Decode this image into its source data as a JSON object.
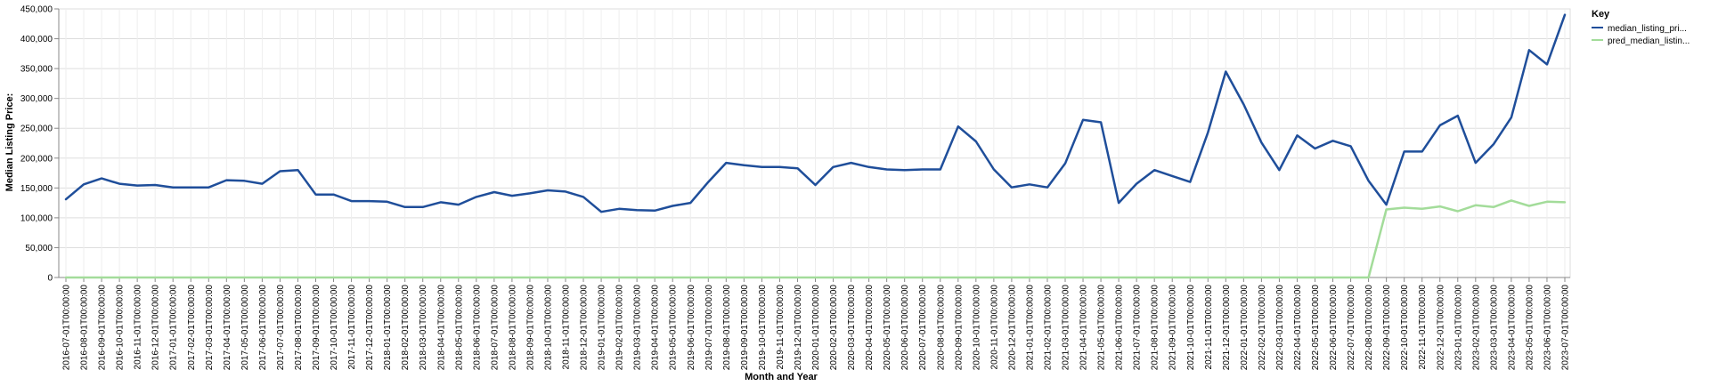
{
  "chart_data": {
    "type": "line",
    "title": "",
    "xlabel": "Month and Year",
    "ylabel": "Median Listing Price:",
    "ylim": [
      0,
      450000
    ],
    "yticks": [
      0,
      50000,
      100000,
      150000,
      200000,
      250000,
      300000,
      350000,
      400000,
      450000
    ],
    "ytick_labels": [
      "0",
      "50,000",
      "100,000",
      "150,000",
      "200,000",
      "250,000",
      "300,000",
      "350,000",
      "400,000",
      "450,000"
    ],
    "grid": true,
    "legend": {
      "title": "Key",
      "placement": "right"
    },
    "x": [
      "2016-07-01T00:00:00",
      "2016-08-01T00:00:00",
      "2016-09-01T00:00:00",
      "2016-10-01T00:00:00",
      "2016-11-01T00:00:00",
      "2016-12-01T00:00:00",
      "2017-01-01T00:00:00",
      "2017-02-01T00:00:00",
      "2017-03-01T00:00:00",
      "2017-04-01T00:00:00",
      "2017-05-01T00:00:00",
      "2017-06-01T00:00:00",
      "2017-07-01T00:00:00",
      "2017-08-01T00:00:00",
      "2017-09-01T00:00:00",
      "2017-10-01T00:00:00",
      "2017-11-01T00:00:00",
      "2017-12-01T00:00:00",
      "2018-01-01T00:00:00",
      "2018-02-01T00:00:00",
      "2018-03-01T00:00:00",
      "2018-04-01T00:00:00",
      "2018-05-01T00:00:00",
      "2018-06-01T00:00:00",
      "2018-07-01T00:00:00",
      "2018-08-01T00:00:00",
      "2018-09-01T00:00:00",
      "2018-10-01T00:00:00",
      "2018-11-01T00:00:00",
      "2018-12-01T00:00:00",
      "2019-01-01T00:00:00",
      "2019-02-01T00:00:00",
      "2019-03-01T00:00:00",
      "2019-04-01T00:00:00",
      "2019-05-01T00:00:00",
      "2019-06-01T00:00:00",
      "2019-07-01T00:00:00",
      "2019-08-01T00:00:00",
      "2019-09-01T00:00:00",
      "2019-10-01T00:00:00",
      "2019-11-01T00:00:00",
      "2019-12-01T00:00:00",
      "2020-01-01T00:00:00",
      "2020-02-01T00:00:00",
      "2020-03-01T00:00:00",
      "2020-04-01T00:00:00",
      "2020-05-01T00:00:00",
      "2020-06-01T00:00:00",
      "2020-07-01T00:00:00",
      "2020-08-01T00:00:00",
      "2020-09-01T00:00:00",
      "2020-10-01T00:00:00",
      "2020-11-01T00:00:00",
      "2020-12-01T00:00:00",
      "2021-01-01T00:00:00",
      "2021-02-01T00:00:00",
      "2021-03-01T00:00:00",
      "2021-04-01T00:00:00",
      "2021-05-01T00:00:00",
      "2021-06-01T00:00:00",
      "2021-07-01T00:00:00",
      "2021-08-01T00:00:00",
      "2021-09-01T00:00:00",
      "2021-10-01T00:00:00",
      "2021-11-01T00:00:00",
      "2021-12-01T00:00:00",
      "2022-01-01T00:00:00",
      "2022-02-01T00:00:00",
      "2022-03-01T00:00:00",
      "2022-04-01T00:00:00",
      "2022-05-01T00:00:00",
      "2022-06-01T00:00:00",
      "2022-07-01T00:00:00",
      "2022-08-01T00:00:00",
      "2022-09-01T00:00:00",
      "2022-10-01T00:00:00",
      "2022-11-01T00:00:00",
      "2022-12-01T00:00:00",
      "2023-01-01T00:00:00",
      "2023-02-01T00:00:00",
      "2023-03-01T00:00:00",
      "2023-04-01T00:00:00",
      "2023-05-01T00:00:00",
      "2023-06-01T00:00:00",
      "2023-07-01T00:00:00"
    ],
    "series": [
      {
        "name": "median_listing_pri...",
        "color": "#1f4e9a",
        "values": [
          131000,
          156000,
          166000,
          157000,
          154000,
          155000,
          151000,
          151000,
          151000,
          163000,
          162000,
          157000,
          178000,
          180000,
          139000,
          139000,
          128000,
          128000,
          127000,
          118000,
          118000,
          126000,
          122000,
          135000,
          143000,
          137000,
          141000,
          146000,
          144000,
          135000,
          110000,
          115000,
          113000,
          112000,
          120000,
          125000,
          160000,
          192000,
          188000,
          185000,
          185000,
          183000,
          155000,
          185000,
          192000,
          185000,
          181000,
          180000,
          181000,
          181000,
          253000,
          228000,
          181000,
          151000,
          156000,
          151000,
          191000,
          264000,
          260000,
          125000,
          157000,
          180000,
          170000,
          160000,
          243000,
          345000,
          290000,
          226000,
          180000,
          238000,
          216000,
          229000,
          220000,
          162000,
          122000,
          211000,
          211000,
          255000,
          271000,
          192000,
          223000,
          268000,
          381000,
          357000,
          440000
        ]
      },
      {
        "name": "pred_median_listin...",
        "color": "#a3dc9a",
        "values": [
          0,
          0,
          0,
          0,
          0,
          0,
          0,
          0,
          0,
          0,
          0,
          0,
          0,
          0,
          0,
          0,
          0,
          0,
          0,
          0,
          0,
          0,
          0,
          0,
          0,
          0,
          0,
          0,
          0,
          0,
          0,
          0,
          0,
          0,
          0,
          0,
          0,
          0,
          0,
          0,
          0,
          0,
          0,
          0,
          0,
          0,
          0,
          0,
          0,
          0,
          0,
          0,
          0,
          0,
          0,
          0,
          0,
          0,
          0,
          0,
          0,
          0,
          0,
          0,
          0,
          0,
          0,
          0,
          0,
          0,
          0,
          0,
          0,
          0,
          114000,
          117000,
          115000,
          119000,
          111000,
          121000,
          118000,
          129000,
          120000,
          127000,
          126000
        ]
      }
    ]
  }
}
